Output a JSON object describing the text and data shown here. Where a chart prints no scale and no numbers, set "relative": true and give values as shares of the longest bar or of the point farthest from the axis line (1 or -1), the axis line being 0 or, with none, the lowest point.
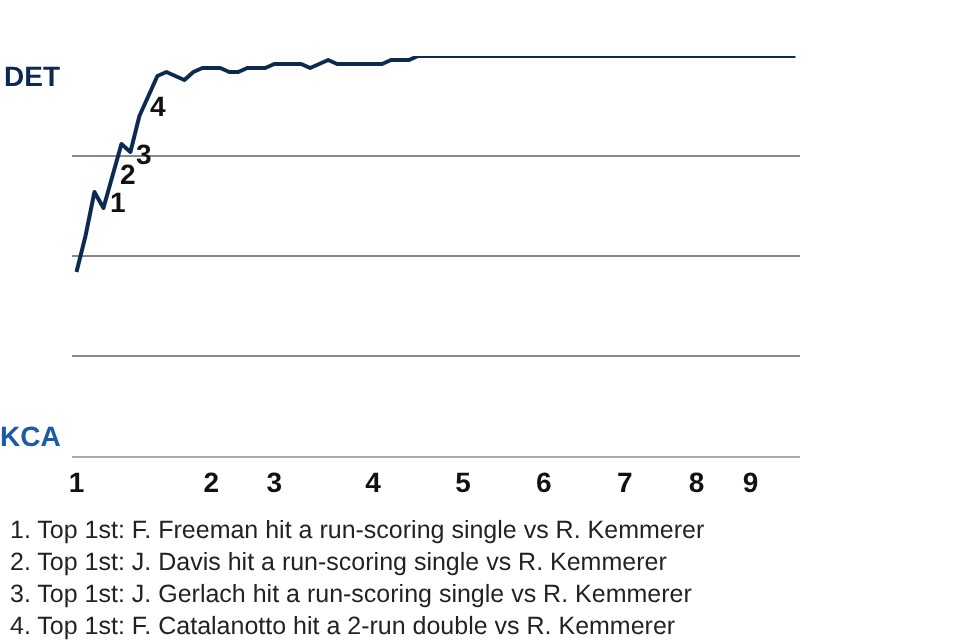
{
  "chart_data": {
    "type": "line",
    "relative": true,
    "categories": [
      "1",
      null,
      null,
      null,
      null,
      null,
      null,
      null,
      null,
      null,
      null,
      null,
      null,
      null,
      null,
      "2",
      null,
      null,
      null,
      null,
      null,
      null,
      "3",
      null,
      null,
      null,
      null,
      null,
      null,
      null,
      null,
      null,
      null,
      "4",
      null,
      null,
      null,
      null,
      null,
      null,
      null,
      null,
      null,
      "5",
      null,
      null,
      null,
      null,
      null,
      null,
      null,
      null,
      "6",
      null,
      null,
      null,
      null,
      null,
      null,
      null,
      null,
      "7",
      null,
      null,
      null,
      null,
      null,
      null,
      null,
      "8",
      null,
      null,
      null,
      null,
      null,
      "9",
      null,
      null,
      null,
      null,
      null
    ],
    "series": [
      {
        "color": "#0c2a4f",
        "values": [
          0.46,
          0.55,
          0.66,
          0.62,
          0.7,
          0.78,
          0.76,
          0.85,
          0.9,
          0.95,
          0.96,
          0.95,
          0.94,
          0.96,
          0.97,
          0.97,
          0.97,
          0.96,
          0.96,
          0.97,
          0.97,
          0.97,
          0.98,
          0.98,
          0.98,
          0.98,
          0.97,
          0.98,
          0.99,
          0.98,
          0.98,
          0.98,
          0.98,
          0.98,
          0.98,
          0.99,
          0.99,
          0.99,
          1,
          1,
          1,
          1,
          1,
          1,
          1,
          1,
          1,
          1,
          1,
          1,
          1,
          1,
          1,
          1,
          1,
          1,
          1,
          1,
          1,
          1,
          1,
          1,
          1,
          1,
          1,
          1,
          1,
          1,
          1,
          1,
          1,
          1,
          1,
          1,
          1,
          1,
          1,
          1,
          1,
          1,
          1
        ]
      }
    ],
    "grid": "y",
    "marker": "none",
    "line_style": "solid",
    "annotations": [
      "DET",
      "KCA",
      "1",
      "2",
      "3",
      "4",
      "1. Top 1st: F. Freeman hit a run-scoring single vs R. Kemmerer",
      "2. Top 1st: J. Davis hit a run-scoring single vs R. Kemmerer",
      "3. Top 1st: J. Gerlach hit a run-scoring single vs R. Kemmerer",
      "4. Top 1st: F. Catalanotto hit a 2-run double vs R. Kemmerer"
    ]
  }
}
